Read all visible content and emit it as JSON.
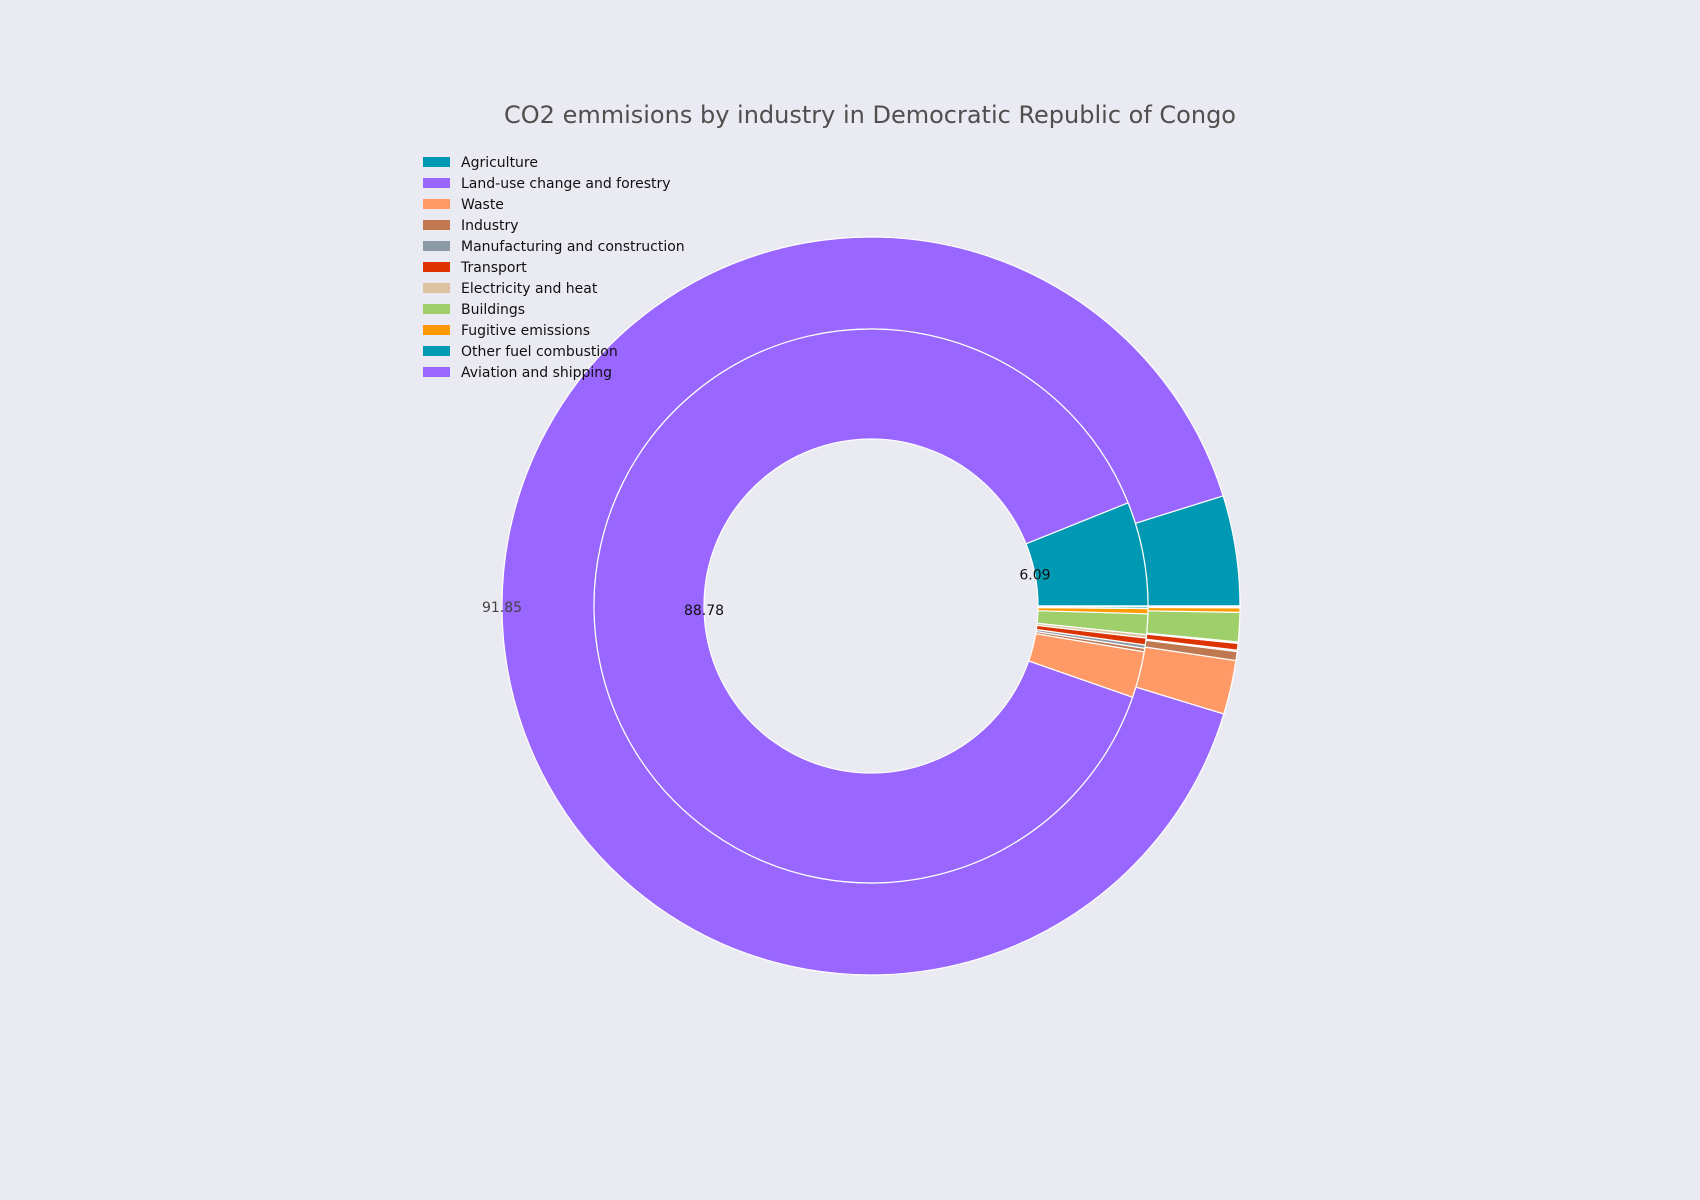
{
  "chart_data": {
    "type": "pie",
    "title": "CO2 emmisions by industry in Democratic Republic of Congo",
    "legend_position": "top-left",
    "categories": [
      "Agriculture",
      "Land-use change and forestry",
      "Waste",
      "Industry",
      "Manufacturing and construction",
      "Transport",
      "Electricity and heat",
      "Buildings",
      "Fugitive emissions",
      "Other fuel combustion",
      "Aviation and shipping"
    ],
    "colors": [
      "#0099b3",
      "#9966ff",
      "#ff9966",
      "#c07850",
      "#8c9aa6",
      "#dd3300",
      "#dcc39f",
      "#9ecf6a",
      "#ff9a00",
      "#0099b3",
      "#9966ff"
    ],
    "series": [
      {
        "ring": "outer",
        "values": [
          4.9,
          91.85,
          2.4,
          0.4,
          0.06,
          0.3,
          0.06,
          1.3,
          0.2,
          0.05,
          0.03
        ],
        "labels": [
          null,
          "91.85",
          null,
          null,
          null,
          null,
          null,
          null,
          null,
          null,
          null
        ]
      },
      {
        "ring": "inner",
        "values": [
          6.09,
          88.78,
          2.7,
          0.2,
          0.2,
          0.4,
          0.2,
          1.2,
          0.3,
          0.1,
          0.05
        ],
        "labels": [
          "6.09",
          "88.78",
          null,
          null,
          null,
          null,
          null,
          null,
          null,
          null,
          null
        ]
      }
    ]
  }
}
